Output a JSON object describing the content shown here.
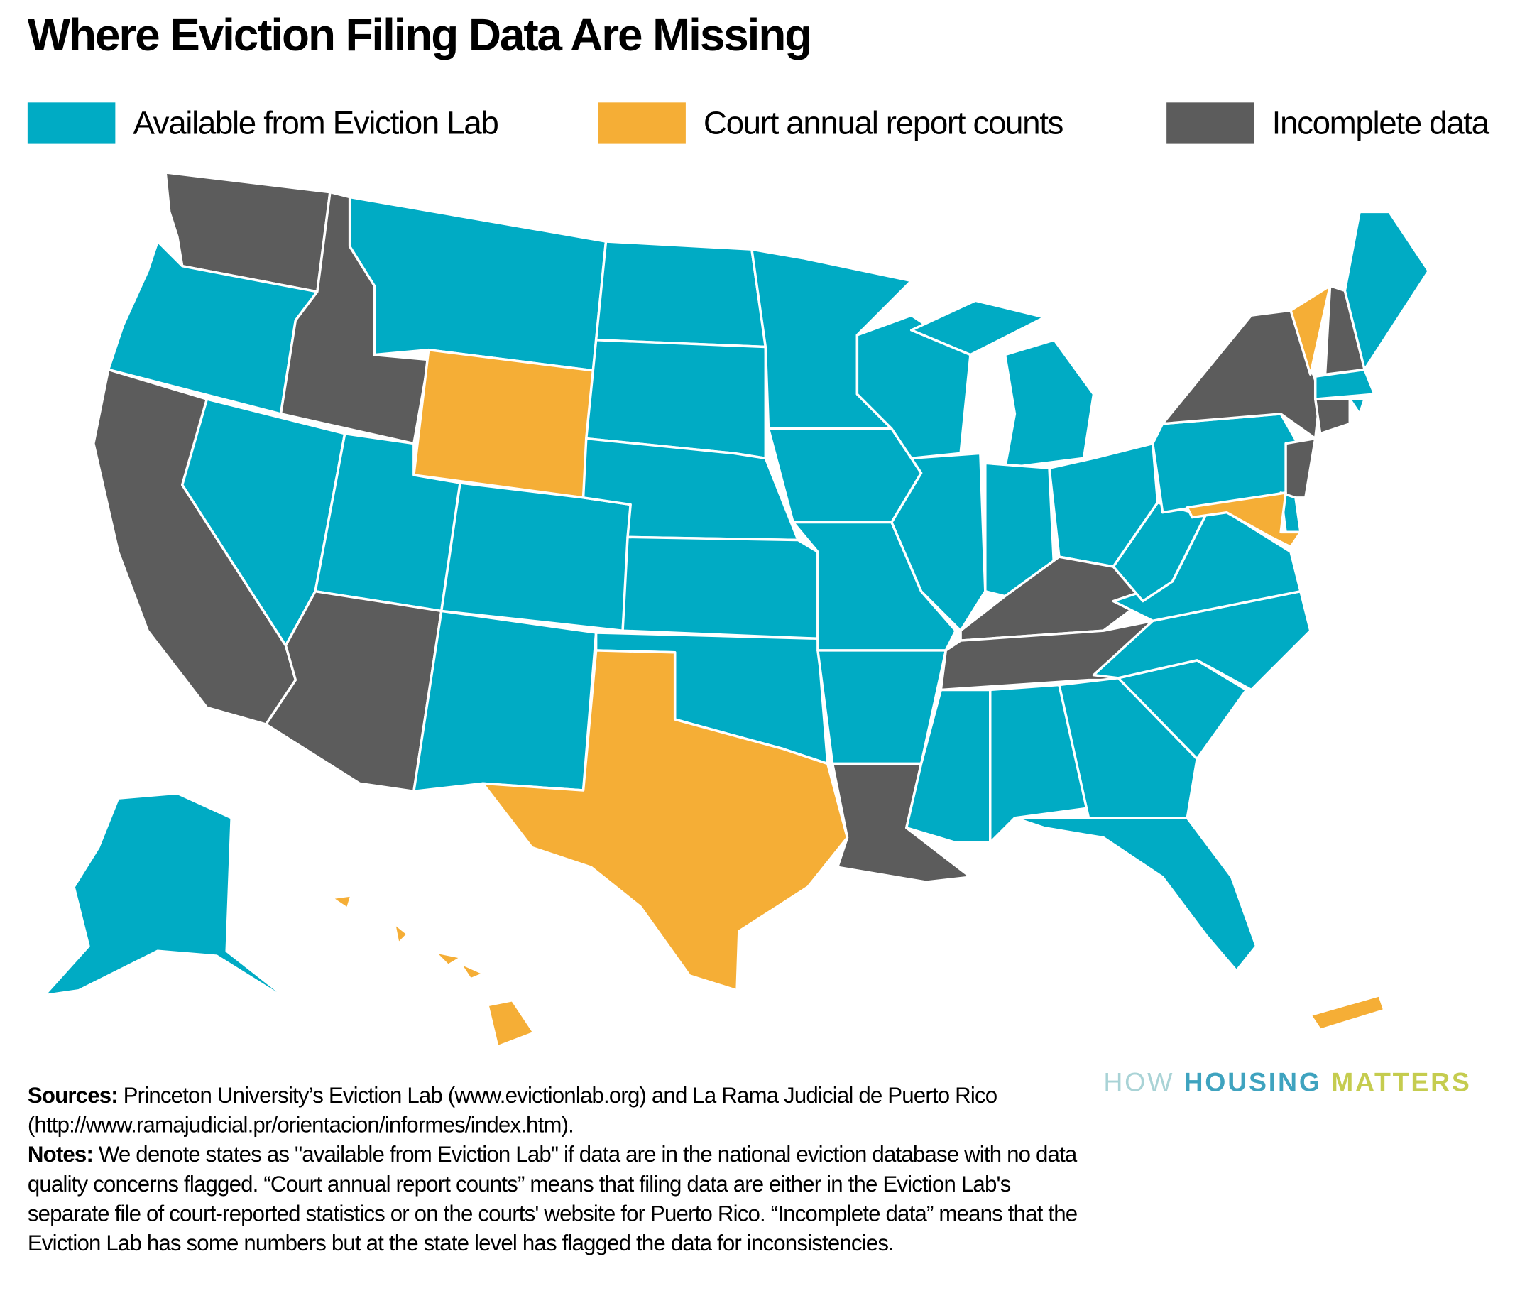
{
  "title": "Where Eviction Filing Data Are Missing",
  "legend": [
    {
      "key": "available",
      "label": "Available from Eviction Lab",
      "color": "#00abc4"
    },
    {
      "key": "court",
      "label": "Court annual report counts",
      "color": "#f5ae36"
    },
    {
      "key": "incomplete",
      "label": "Incomplete data",
      "color": "#5c5c5c"
    }
  ],
  "states": {
    "WA": "incomplete",
    "OR": "available",
    "CA": "incomplete",
    "ID": "incomplete",
    "NV": "available",
    "MT": "available",
    "WY": "court",
    "UT": "available",
    "AZ": "incomplete",
    "CO": "available",
    "NM": "available",
    "ND": "available",
    "SD": "available",
    "NE": "available",
    "KS": "available",
    "OK": "available",
    "TX": "court",
    "MN": "available",
    "IA": "available",
    "MO": "available",
    "AR": "available",
    "LA": "incomplete",
    "WI": "available",
    "IL": "available",
    "MI": "available",
    "MI_UP": "available",
    "IN": "available",
    "OH": "available",
    "KY": "incomplete",
    "TN": "incomplete",
    "MS": "available",
    "AL": "available",
    "GA": "available",
    "FL": "available",
    "SC": "available",
    "NC": "available",
    "VA": "available",
    "WV": "available",
    "PA": "available",
    "NY": "incomplete",
    "VT": "court",
    "NH": "incomplete",
    "ME": "available",
    "MA": "available",
    "CT": "incomplete",
    "RI": "available",
    "NJ": "incomplete",
    "DE": "available",
    "MD": "court",
    "AK": "available",
    "HI": "court",
    "PR": "court"
  },
  "footer": {
    "sources_label": "Sources:",
    "sources_text": " Princeton University’s Eviction Lab (www.evictionlab.org) and La Rama Judicial de Puerto Rico (http://www.ramajudicial.pr/orientacion/informes/index.htm).",
    "notes_label": "Notes:",
    "notes_text": " We denote states as \"available from Eviction Lab\" if data are in the national eviction database with no data quality concerns flagged. “Court annual report counts” means that filing data are either in the Eviction Lab's separate file of court-reported statistics or on the courts' website for Puerto Rico. “Incomplete data” means that the Eviction Lab has some numbers but at the state level has flagged the data for inconsistencies."
  },
  "logo": {
    "part1": "HOW",
    "part2": "HOUSING",
    "part3": "MATTERS",
    "colors": [
      "#a9d3d6",
      "#3fa3bf",
      "#c5cc4f"
    ]
  }
}
